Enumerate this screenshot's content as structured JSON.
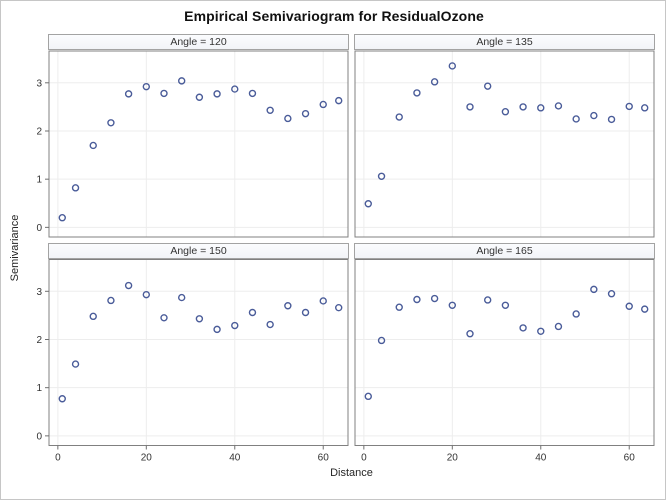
{
  "figure": {
    "type": "sas-ods-graph",
    "background": "#ffffff",
    "border_color": "#c6c6c6"
  },
  "colors": {
    "marker": "#4a5c99",
    "grid": "#ededed",
    "wall_border": "#808080",
    "wall_fill": "#ffffff",
    "tick": "#6f6f6f",
    "text": "#262626"
  },
  "chart_data": {
    "type": "scatter",
    "title": "Empirical Semivariogram for ResidualOzone",
    "xlabel": "Distance",
    "ylabel": "Semivariance",
    "marker": "open-circle",
    "grid": true,
    "x_ticks": [
      0,
      20,
      40,
      60
    ],
    "y_ticks": [
      0,
      1,
      2,
      3
    ],
    "xlim": [
      -2,
      65.6
    ],
    "ylim": [
      -0.2,
      3.66
    ],
    "x": [
      1,
      4,
      8,
      12,
      16,
      20,
      24,
      28,
      32,
      36,
      40,
      44,
      48,
      52,
      56,
      60,
      63.5
    ],
    "panels": [
      {
        "label": "Angle = 120",
        "values": [
          0.2,
          0.82,
          1.7,
          2.17,
          2.77,
          2.92,
          2.78,
          3.04,
          2.7,
          2.77,
          2.87,
          2.78,
          2.43,
          2.26,
          2.36,
          2.55,
          2.63
        ]
      },
      {
        "label": "Angle = 135",
        "values": [
          0.49,
          1.06,
          2.29,
          2.79,
          3.02,
          3.35,
          2.5,
          2.93,
          2.4,
          2.5,
          2.48,
          2.52,
          2.25,
          2.32,
          2.24,
          2.51,
          2.48
        ]
      },
      {
        "label": "Angle = 150",
        "values": [
          0.77,
          1.49,
          2.48,
          2.81,
          3.12,
          2.93,
          2.45,
          2.87,
          2.43,
          2.21,
          2.29,
          2.56,
          2.31,
          2.7,
          2.56,
          2.8,
          2.66
        ]
      },
      {
        "label": "Angle = 165",
        "values": [
          0.82,
          1.98,
          2.67,
          2.83,
          2.85,
          2.71,
          2.12,
          2.82,
          2.71,
          2.24,
          2.17,
          2.27,
          2.53,
          3.04,
          2.95,
          2.69,
          2.63
        ]
      }
    ]
  }
}
